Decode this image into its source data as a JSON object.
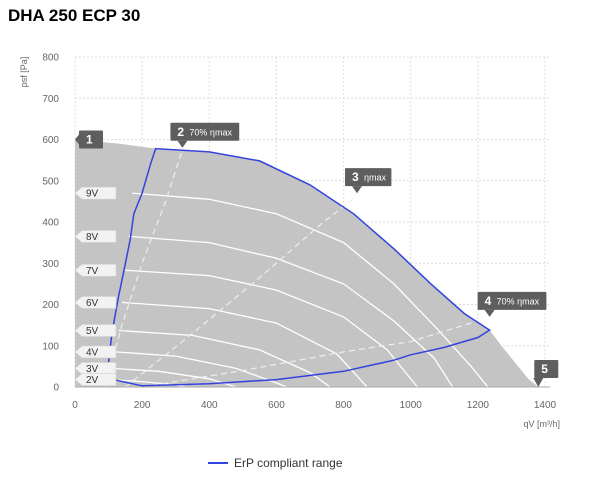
{
  "title": "DHA 250 ECP 30",
  "chart_data": {
    "type": "line",
    "title": "DHA 250 ECP 30",
    "xlabel": "qV [m³/h]",
    "ylabel": "psf [Pa]",
    "xlim": [
      0,
      1400
    ],
    "ylim": [
      0,
      800
    ],
    "x_ticks": [
      0,
      200,
      400,
      600,
      800,
      1000,
      1200,
      1400
    ],
    "y_ticks": [
      0,
      100,
      200,
      300,
      400,
      500,
      600,
      700,
      800
    ],
    "grid": true,
    "operating_area": [
      [
        0,
        600
      ],
      [
        130,
        590
      ],
      [
        240,
        578
      ],
      [
        400,
        570
      ],
      [
        550,
        548
      ],
      [
        700,
        490
      ],
      [
        830,
        420
      ],
      [
        950,
        335
      ],
      [
        1060,
        250
      ],
      [
        1160,
        178
      ],
      [
        1235,
        138
      ],
      [
        1270,
        100
      ],
      [
        1310,
        60
      ],
      [
        1350,
        20
      ],
      [
        1380,
        0
      ],
      [
        0,
        0
      ]
    ],
    "erp_compliant_range": {
      "name": "ErP compliant range",
      "color": "#3344dd",
      "points": [
        [
          130,
          15
        ],
        [
          200,
          3
        ],
        [
          400,
          8
        ],
        [
          600,
          18
        ],
        [
          800,
          38
        ],
        [
          950,
          65
        ],
        [
          1000,
          78
        ],
        [
          1100,
          96
        ],
        [
          1200,
          120
        ],
        [
          1235,
          138
        ],
        [
          1160,
          178
        ],
        [
          1060,
          250
        ],
        [
          950,
          335
        ],
        [
          830,
          420
        ],
        [
          700,
          490
        ],
        [
          550,
          548
        ],
        [
          400,
          570
        ],
        [
          240,
          578
        ],
        [
          225,
          540
        ],
        [
          200,
          470
        ],
        [
          175,
          420
        ],
        [
          165,
          360
        ],
        [
          150,
          300
        ],
        [
          130,
          220
        ],
        [
          110,
          130
        ],
        [
          100,
          60
        ],
        [
          110,
          20
        ],
        [
          130,
          15
        ]
      ]
    },
    "fan_curves": [
      {
        "label": "9V",
        "points": [
          [
            170,
            470
          ],
          [
            400,
            455
          ],
          [
            600,
            420
          ],
          [
            800,
            350
          ],
          [
            950,
            250
          ],
          [
            1080,
            140
          ],
          [
            1180,
            50
          ],
          [
            1230,
            0
          ]
        ]
      },
      {
        "label": "8V",
        "points": [
          [
            160,
            365
          ],
          [
            400,
            350
          ],
          [
            600,
            312
          ],
          [
            800,
            250
          ],
          [
            950,
            160
          ],
          [
            1070,
            70
          ],
          [
            1125,
            0
          ]
        ]
      },
      {
        "label": "7V",
        "points": [
          [
            150,
            283
          ],
          [
            400,
            270
          ],
          [
            600,
            235
          ],
          [
            800,
            170
          ],
          [
            930,
            90
          ],
          [
            1020,
            0
          ]
        ]
      },
      {
        "label": "6V",
        "points": [
          [
            140,
            205
          ],
          [
            400,
            190
          ],
          [
            600,
            155
          ],
          [
            780,
            80
          ],
          [
            870,
            0
          ]
        ]
      },
      {
        "label": "5V",
        "points": [
          [
            130,
            137
          ],
          [
            350,
            125
          ],
          [
            550,
            90
          ],
          [
            700,
            35
          ],
          [
            760,
            0
          ]
        ]
      },
      {
        "label": "4V",
        "points": [
          [
            120,
            85
          ],
          [
            300,
            75
          ],
          [
            480,
            45
          ],
          [
            600,
            10
          ],
          [
            630,
            0
          ]
        ]
      },
      {
        "label": "3V",
        "points": [
          [
            110,
            45
          ],
          [
            250,
            38
          ],
          [
            400,
            20
          ],
          [
            480,
            0
          ]
        ]
      },
      {
        "label": "2V",
        "points": [
          [
            100,
            18
          ],
          [
            200,
            13
          ],
          [
            300,
            5
          ],
          [
            330,
            0
          ]
        ]
      }
    ],
    "efficiency_lines": [
      {
        "label": "70% ηmax",
        "points": [
          [
            90,
            0
          ],
          [
            140,
            150
          ],
          [
            200,
            300
          ],
          [
            270,
            450
          ],
          [
            320,
            575
          ]
        ]
      },
      {
        "label": "ηmax",
        "points": [
          [
            150,
            0
          ],
          [
            350,
            130
          ],
          [
            550,
            265
          ],
          [
            740,
            400
          ],
          [
            820,
            450
          ],
          [
            880,
            510
          ]
        ]
      },
      {
        "label": "70% ηmax",
        "points": [
          [
            200,
            0
          ],
          [
            500,
            40
          ],
          [
            800,
            85
          ],
          [
            1000,
            110
          ],
          [
            1200,
            160
          ]
        ]
      }
    ],
    "markers": [
      {
        "number": "1",
        "text": "",
        "x": 0,
        "y": 600
      },
      {
        "number": "2",
        "text": "70% ηmax",
        "x": 320,
        "y": 580
      },
      {
        "number": "3",
        "text": "ηmax",
        "x": 840,
        "y": 470
      },
      {
        "number": "4",
        "text": "70% ηmax",
        "x": 1235,
        "y": 170
      },
      {
        "number": "5",
        "text": "",
        "x": 1380,
        "y": 0
      }
    ]
  },
  "legend": {
    "label": "ErP compliant range",
    "color": "#3344dd"
  }
}
